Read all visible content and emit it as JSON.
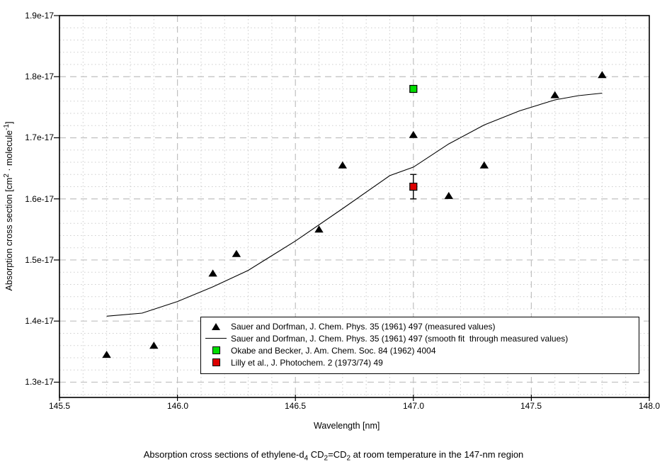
{
  "chart_data": {
    "type": "scatter",
    "title": "",
    "xlabel": "Wavelength [nm]",
    "ylabel": "Absorption cross section [cm2 . molecule-1]",
    "ylabel_segments": [
      {
        "t": "Absorption cross section [cm"
      },
      {
        "t": "2",
        "sup": true
      },
      {
        "t": " · molecule"
      },
      {
        "t": "-1",
        "sup": true
      },
      {
        "t": "]"
      }
    ],
    "xlim": [
      145.5,
      148.0
    ],
    "ylim_e17": [
      1.275,
      1.9
    ],
    "xticks": [
      {
        "v": 145.5,
        "label": "145.5"
      },
      {
        "v": 146.0,
        "label": "146.0"
      },
      {
        "v": 146.5,
        "label": "146.5"
      },
      {
        "v": 147.0,
        "label": "147.0"
      },
      {
        "v": 147.5,
        "label": "147.5"
      },
      {
        "v": 148.0,
        "label": "148.0"
      }
    ],
    "yticks": [
      {
        "v": 1.3,
        "label": "1.3e-17"
      },
      {
        "v": 1.4,
        "label": "1.4e-17"
      },
      {
        "v": 1.5,
        "label": "1.5e-17"
      },
      {
        "v": 1.6,
        "label": "1.6e-17"
      },
      {
        "v": 1.7,
        "label": "1.7e-17"
      },
      {
        "v": 1.8,
        "label": "1.8e-17"
      },
      {
        "v": 1.9,
        "label": "1.9e-17"
      }
    ],
    "minor_x_step": 0.1,
    "minor_y_step": 0.02,
    "grid": true,
    "units_note": "y values in 1e-17 cm2/molecule",
    "series": [
      {
        "name": "Sauer and Dorfman measured values",
        "type": "scatter",
        "marker": "triangle",
        "color": "#000000",
        "points": [
          [
            145.7,
            1.345
          ],
          [
            145.9,
            1.36
          ],
          [
            146.15,
            1.478
          ],
          [
            146.25,
            1.51
          ],
          [
            146.6,
            1.55
          ],
          [
            146.7,
            1.655
          ],
          [
            147.0,
            1.705
          ],
          [
            147.15,
            1.605
          ],
          [
            147.3,
            1.655
          ],
          [
            147.6,
            1.77
          ],
          [
            147.8,
            1.803
          ]
        ]
      },
      {
        "name": "Sauer and Dorfman smooth fit",
        "type": "line",
        "color": "#000000",
        "points": [
          [
            145.7,
            1.408
          ],
          [
            145.85,
            1.413
          ],
          [
            146.0,
            1.432
          ],
          [
            146.15,
            1.456
          ],
          [
            146.3,
            1.483
          ],
          [
            146.5,
            1.531
          ],
          [
            146.7,
            1.584
          ],
          [
            146.9,
            1.638
          ],
          [
            147.0,
            1.652
          ],
          [
            147.15,
            1.69
          ],
          [
            147.3,
            1.721
          ],
          [
            147.45,
            1.744
          ],
          [
            147.6,
            1.762
          ],
          [
            147.7,
            1.769
          ],
          [
            147.8,
            1.773
          ]
        ]
      },
      {
        "name": "Okabe and Becker",
        "type": "scatter",
        "marker": "square",
        "color": "#00dd00",
        "points": [
          [
            147.0,
            1.78
          ]
        ]
      },
      {
        "name": "Lilly et al.",
        "type": "scatter",
        "marker": "square",
        "color": "#dd0000",
        "points": [
          [
            147.0,
            1.62
          ]
        ],
        "error_y": 0.02
      }
    ],
    "legend_position": "bottom-center-inside"
  },
  "legend": {
    "items": [
      {
        "symbol": "triangle",
        "label": "Sauer and Dorfman, J. Chem. Phys. 35 (1961) 497 (measured values)"
      },
      {
        "symbol": "line",
        "label": "Sauer and Dorfman, J. Chem. Phys. 35 (1961) 497 (smooth fit  through measured values)"
      },
      {
        "symbol": "square-green",
        "label": "Okabe and Becker, J. Am. Chem. Soc. 84 (1962) 4004"
      },
      {
        "symbol": "square-red",
        "label": "Lilly et al., J. Photochem. 2 (1973/74) 49"
      }
    ]
  },
  "caption": {
    "segments": [
      {
        "t": "Absorption cross sections of ethylene-d"
      },
      {
        "t": "4",
        "sub": true
      },
      {
        "t": " CD"
      },
      {
        "t": "2",
        "sub": true
      },
      {
        "t": "=CD"
      },
      {
        "t": "2",
        "sub": true
      },
      {
        "t": " at room temperature in the 147-nm region"
      }
    ]
  },
  "colors": {
    "axis": "#000000",
    "major_grid": "#c0c0c0",
    "minor_grid": "#cdcdcd",
    "okabe_green": "#00dd00",
    "lilly_red": "#dd0000"
  }
}
